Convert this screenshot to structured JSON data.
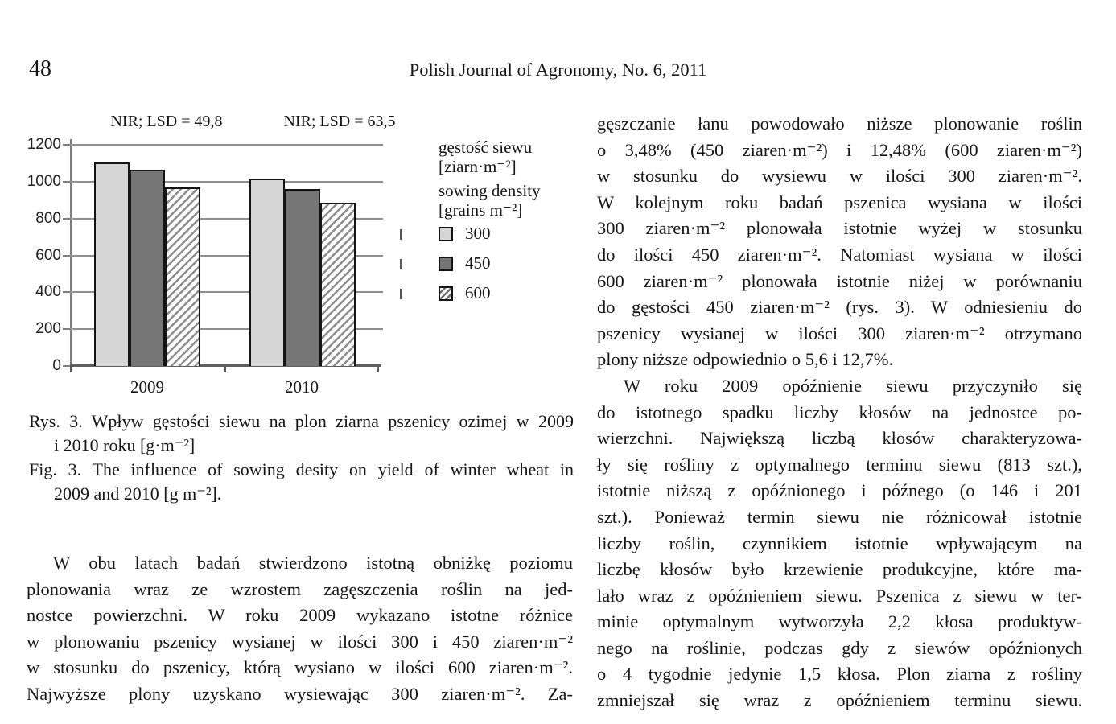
{
  "page": {
    "number": "48",
    "journal_header": "Polish Journal of Agronomy, No. 6, 2011"
  },
  "chart_data": {
    "type": "bar",
    "categories": [
      "2009",
      "2010"
    ],
    "series": [
      {
        "name": "300",
        "style": "light",
        "values": [
          1105,
          1016
        ]
      },
      {
        "name": "450",
        "style": "dark",
        "values": [
          1066,
          959
        ]
      },
      {
        "name": "600",
        "style": "hatched",
        "values": [
          967,
          887
        ]
      }
    ],
    "annotations": [
      "NIR; LSD = 49,8",
      "NIR; LSD = 63,5"
    ],
    "ylim": [
      0,
      1200
    ],
    "yticks": [
      0,
      200,
      400,
      600,
      800,
      1000,
      1200
    ],
    "grid": true,
    "legend_position": "right",
    "legend_title_pl": "gęstość siewu",
    "legend_title_pl_unit": "[ziarn·m⁻²]",
    "legend_title_en": "sowing density",
    "legend_title_en_unit": "[grains m⁻²]",
    "legend_entries": [
      "300",
      "450",
      "600"
    ],
    "colors": {
      "light": "#d6d6d6",
      "dark": "#767676",
      "hatch_line": "#8d8d8d",
      "gridline": "#8f8f8f"
    }
  },
  "caption": {
    "rys_line1": "Rys. 3. Wpływ gęstości siewu na plon ziarna pszenicy ozimej w 2009",
    "rys_line2": "i 2010 roku [g·m⁻²]",
    "fig_line1": "Fig. 3. The influence of sowing desity on yield of winter wheat in",
    "fig_line2": "2009 and 2010 [g m⁻²]."
  },
  "left_column": {
    "paragraph_lines": [
      "W obu latach badań stwierdzono istotną obniżkę poziomu",
      "plonowania wraz ze wzrostem zagęszczenia roślin na jed-",
      "nostce powierzchni. W roku 2009 wykazano istotne różnice",
      "w plonowaniu pszenicy wysianej w ilości 300 i 450 ziaren·m⁻²",
      "w stosunku do pszenicy, którą wysiano w ilości 600 ziaren·m⁻².",
      "Najwyższe plony uzyskano wysiewając 300 ziaren·m⁻². Za-"
    ]
  },
  "right_column": {
    "paragraph1_lines": [
      "gęszczanie łanu powodowało niższe plonowanie roślin",
      "o 3,48% (450 ziaren·m⁻²) i 12,48% (600 ziaren·m⁻²)",
      "w stosunku do wysiewu w ilości 300 ziaren·m⁻².",
      "W kolejnym roku badań pszenica wysiana w ilości",
      "300 ziaren·m⁻² plonowała istotnie wyżej w stosunku",
      "do ilości 450 ziaren·m⁻². Natomiast wysiana w ilości",
      "600 ziaren·m⁻² plonowała istotnie niżej w porównaniu",
      "do gęstości 450 ziaren·m⁻² (rys. 3). W odniesieniu do",
      "pszenicy wysianej w ilości 300 ziaren·m⁻² otrzymano",
      "plony niższe odpowiednio o 5,6 i 12,7%."
    ],
    "paragraph2_lines": [
      "W roku 2009 opóźnienie siewu przyczyniło się",
      "do istotnego spadku liczby kłosów na jednostce po-",
      "wierzchni. Największą liczbą kłosów charakteryzowa-",
      "ły się rośliny z optymalnego terminu siewu (813 szt.),",
      "istotnie niższą z opóźnionego i późnego (o 146 i 201",
      "szt.). Ponieważ termin siewu nie różnicował istotnie",
      "liczby roślin, czynnikiem istotnie wpływającym na",
      "liczbę kłosów było krzewienie produkcyjne, które ma-",
      "lało wraz z opóźnieniem siewu. Pszenica z siewu w ter-",
      "minie optymalnym wytworzyła 2,2 kłosa produktyw-",
      "nego na roślinie, podczas gdy z siewów opóźnionych",
      "o 4 tygodnie jedynie 1,5 kłosa. Plon ziarna z rośliny",
      "zmniejszał się wraz z opóźnieniem terminu siewu."
    ]
  }
}
